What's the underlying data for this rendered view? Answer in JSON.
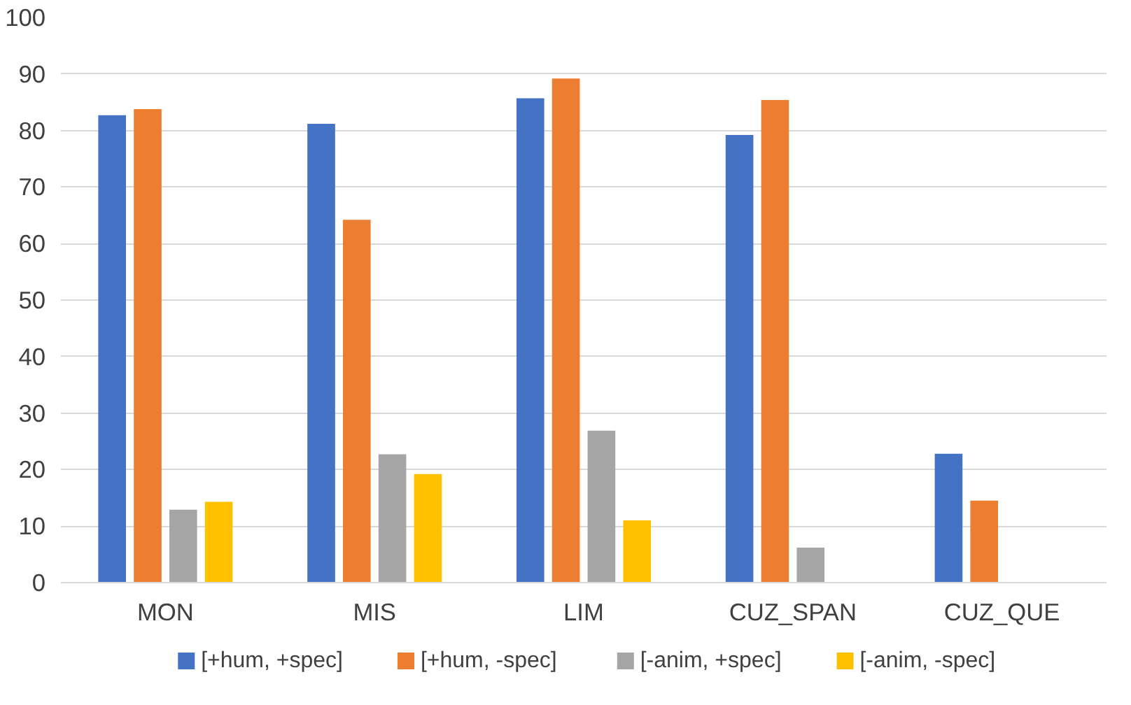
{
  "chart_data": {
    "type": "bar",
    "categories": [
      "MON",
      "MIS",
      "LIM",
      "CUZ_SPAN",
      "CUZ_QUE"
    ],
    "series": [
      {
        "name": "[+hum, +spec]",
        "color": "#4472c4",
        "values": [
          82.7,
          81.2,
          85.7,
          79.2,
          22.8
        ]
      },
      {
        "name": "[+hum, -spec]",
        "color": "#ed7d31",
        "values": [
          83.8,
          64.2,
          89.2,
          85.4,
          14.5
        ]
      },
      {
        "name": "[-anim, +spec]",
        "color": "#a5a5a5",
        "values": [
          12.9,
          22.7,
          26.9,
          6.2,
          0
        ]
      },
      {
        "name": "[-anim, -spec]",
        "color": "#ffc000",
        "values": [
          14.3,
          19.2,
          11.0,
          0,
          0
        ]
      }
    ],
    "ylim": [
      0,
      100
    ],
    "yticks": [
      0,
      10,
      20,
      30,
      40,
      50,
      60,
      70,
      80,
      90,
      100
    ],
    "grid": "y",
    "legend": "bottom"
  }
}
